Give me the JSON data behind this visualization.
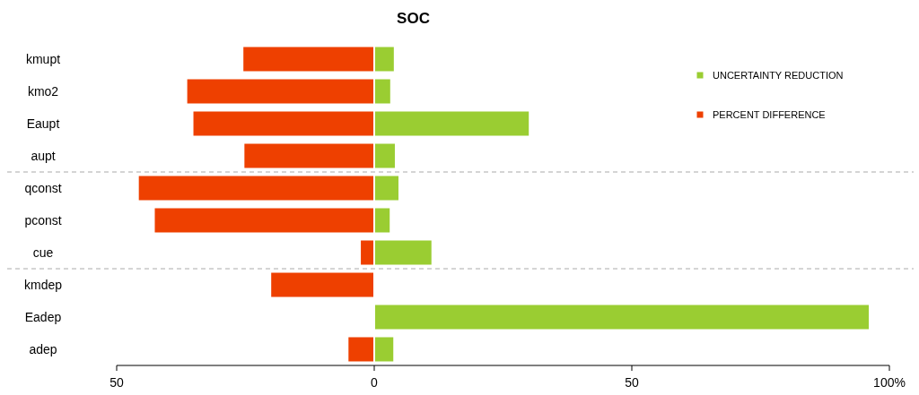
{
  "chart_data": {
    "type": "bar",
    "title": "SOC",
    "orientation": "horizontal",
    "stacked": true,
    "categories": [
      "kmupt",
      "kmo2",
      "Eaupt",
      "aupt",
      "qconst",
      "pconst",
      "cue",
      "kmdep",
      "Eadep",
      "adep"
    ],
    "series": [
      {
        "name": "UNCERTAINTY REDUCTION",
        "color": "#9acd32",
        "values": [
          3.8,
          3.1,
          30,
          4,
          4.7,
          3,
          11.1,
          null,
          96,
          3.7
        ]
      },
      {
        "name": "PERCENT DIFFERENCE",
        "color": "#ee4000",
        "values": [
          -25.4,
          -36.3,
          -35.1,
          -25.2,
          -45.7,
          -42.6,
          -2.6,
          -20,
          null,
          -5
        ]
      }
    ],
    "xlim": [
      -50,
      100
    ],
    "xticks": [
      {
        "value": -50,
        "label": "50"
      },
      0,
      50,
      {
        "value": 100,
        "label": "100%"
      }
    ],
    "grid": false,
    "legend": "top right",
    "marker": "square"
  }
}
